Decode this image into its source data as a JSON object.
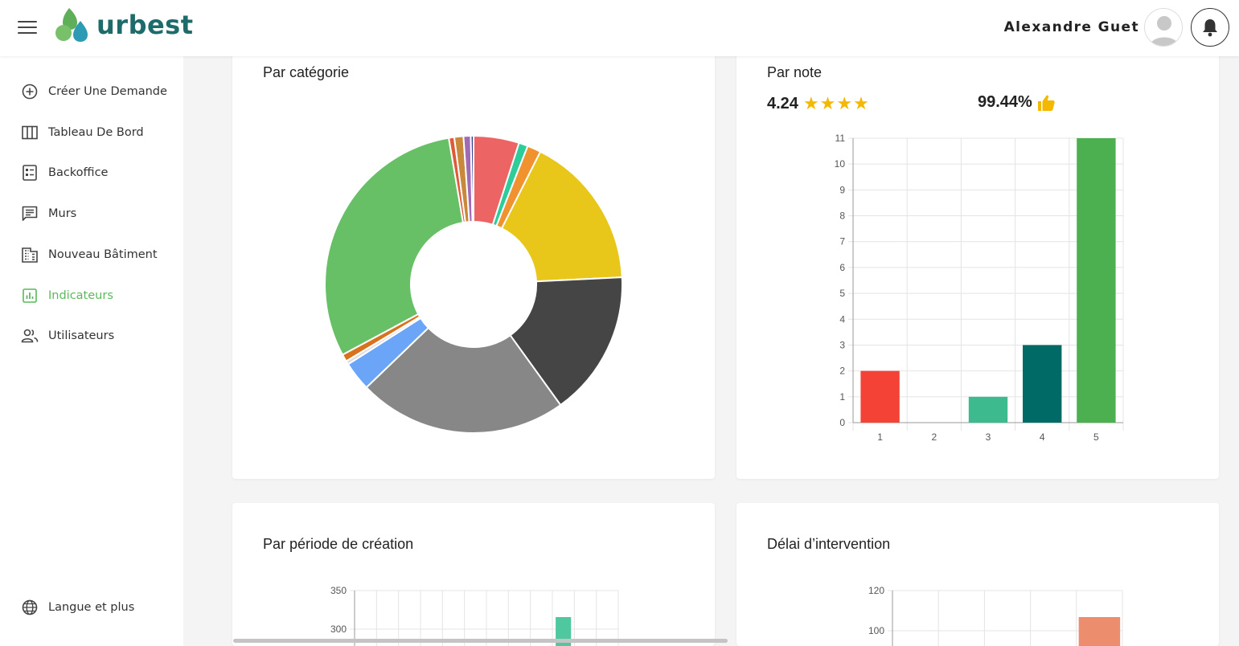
{
  "header": {
    "logo_text": "urbest",
    "user_name": "Alexandre Guet"
  },
  "sidebar": {
    "items": [
      {
        "label": "Créer Une Demande",
        "icon": "add-circle-icon",
        "active": false
      },
      {
        "label": "Tableau De Bord",
        "icon": "columns-icon",
        "active": false
      },
      {
        "label": "Backoffice",
        "icon": "list-box-icon",
        "active": false
      },
      {
        "label": "Murs",
        "icon": "chat-list-icon",
        "active": false
      },
      {
        "label": "Nouveau Bâtiment",
        "icon": "building-icon",
        "active": false
      },
      {
        "label": "Indicateurs",
        "icon": "chart-box-icon",
        "active": true
      },
      {
        "label": "Utilisateurs",
        "icon": "users-icon",
        "active": false
      }
    ],
    "footer_label": "Langue et plus"
  },
  "cards": {
    "category_title": "Par catégorie",
    "rating_title": "Par note",
    "rating_value": "4.24",
    "satisfaction_value": "99.44%",
    "period_title": "Par période de création",
    "delay_title": "Délai d’intervention"
  },
  "chart_data": [
    {
      "type": "pie",
      "subtype": "doughnut",
      "title": "Par catégorie",
      "slices": [
        {
          "value": 5.0,
          "color": "#ec6464"
        },
        {
          "value": 1.0,
          "color": "#2ecc9a"
        },
        {
          "value": 1.5,
          "color": "#f0922e"
        },
        {
          "value": 17.0,
          "color": "#e8c61a"
        },
        {
          "value": 16.0,
          "color": "#454545"
        },
        {
          "value": 23.0,
          "color": "#878787"
        },
        {
          "value": 3.2,
          "color": "#6aa5f8"
        },
        {
          "value": 0.4,
          "color": "#dddddd"
        },
        {
          "value": 0.8,
          "color": "#d9721c"
        },
        {
          "value": 30.5,
          "color": "#68c066"
        },
        {
          "value": 0.6,
          "color": "#e05a3a"
        },
        {
          "value": 1.0,
          "color": "#c8893a"
        },
        {
          "value": 0.8,
          "color": "#a06ab4"
        },
        {
          "value": 0.3,
          "color": "#2d3f8f"
        }
      ]
    },
    {
      "type": "bar",
      "title": "Par note",
      "categories": [
        "1",
        "2",
        "3",
        "4",
        "5"
      ],
      "values": [
        2,
        0,
        1,
        3,
        11
      ],
      "colors": [
        "#f44336",
        "#aaaaaa",
        "#3dba8e",
        "#006a66",
        "#4caf50"
      ],
      "ylim": [
        0,
        11
      ],
      "yticks": [
        0,
        1,
        2,
        3,
        4,
        5,
        6,
        7,
        8,
        9,
        10,
        11
      ],
      "grid": true
    },
    {
      "type": "bar",
      "title": "Par période de création",
      "yticks": [
        300,
        350
      ],
      "visible_bar_color": "#4fc8a0",
      "grid": true
    },
    {
      "type": "bar",
      "title": "Délai d’intervention",
      "yticks": [
        100,
        120
      ],
      "visible_bar_color": "#ec8e6e",
      "grid": true
    }
  ]
}
